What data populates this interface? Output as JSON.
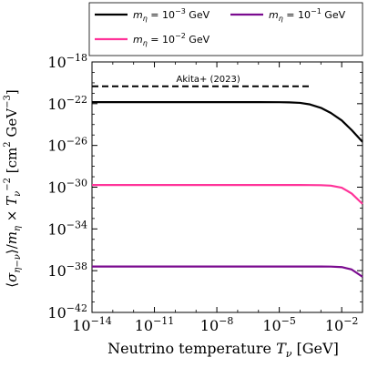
{
  "chart_data": {
    "type": "line",
    "title": "",
    "xlabel": "Neutrino temperature T_ν [GeV]",
    "ylabel": "⟨σ_{η−ν}⟩/m_η × T_ν^{−2} [cm² GeV⁻³]",
    "xscale": "log",
    "yscale": "log",
    "xlim": [
      1e-14,
      0.1
    ],
    "ylim": [
      1e-42,
      1e-18
    ],
    "x_ticks": [
      {
        "value": 1e-14,
        "label": "10^-14"
      },
      {
        "value": 1e-11,
        "label": "10^-11"
      },
      {
        "value": 1e-08,
        "label": "10^-8"
      },
      {
        "value": 1e-05,
        "label": "10^-5"
      },
      {
        "value": 0.01,
        "label": "10^-2"
      }
    ],
    "y_ticks": [
      {
        "value": 1e-18,
        "label": "10^-18"
      },
      {
        "value": 1e-22,
        "label": "10^-22"
      },
      {
        "value": 1e-26,
        "label": "10^-26"
      },
      {
        "value": 1e-30,
        "label": "10^-30"
      },
      {
        "value": 1e-34,
        "label": "10^-34"
      },
      {
        "value": 1e-38,
        "label": "10^-38"
      },
      {
        "value": 1e-42,
        "label": "10^-42"
      }
    ],
    "legend_position": "top, above plot",
    "grid": false,
    "series": [
      {
        "name": "m_η = 10^-3 GeV",
        "color": "#000000",
        "x": [
          1e-14,
          1e-10,
          1e-06,
          1e-05,
          3e-05,
          0.0001,
          0.0003,
          0.001,
          0.003,
          0.01,
          0.03,
          0.1
        ],
        "y": [
          1.4e-22,
          1.4e-22,
          1.4e-22,
          1.39e-22,
          1.35e-22,
          1.2e-22,
          8.5e-23,
          4e-23,
          1.3e-23,
          2.5e-24,
          3e-25,
          2.2e-26
        ]
      },
      {
        "name": "m_η = 10^-2 GeV",
        "color": "#ff3399",
        "x": [
          1e-14,
          1e-10,
          1e-05,
          0.0001,
          0.0003,
          0.001,
          0.003,
          0.01,
          0.03,
          0.1
        ],
        "y": [
          1.6e-30,
          1.6e-30,
          1.6e-30,
          1.6e-30,
          1.59e-30,
          1.55e-30,
          1.4e-30,
          9e-31,
          2.5e-31,
          2.5e-32
        ]
      },
      {
        "name": "m_η = 10^-1 GeV",
        "color": "#7a0a8f",
        "x": [
          1e-14,
          1e-10,
          1e-05,
          0.0001,
          0.001,
          0.003,
          0.01,
          0.03,
          0.1
        ],
        "y": [
          2.5e-38,
          2.5e-38,
          2.5e-38,
          2.5e-38,
          2.49e-38,
          2.45e-38,
          2.2e-38,
          1.3e-38,
          2.6e-39
        ]
      }
    ],
    "annotations": [
      {
        "text": "Akita+ (2023)",
        "style": "dashed",
        "color": "#000000",
        "x": [
          1e-14,
          0.0003
        ],
        "y": [
          4.6e-21,
          4.6e-21
        ]
      }
    ]
  }
}
